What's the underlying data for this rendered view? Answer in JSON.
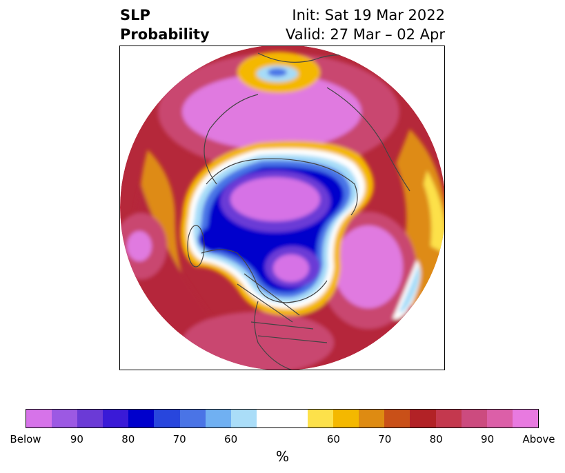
{
  "title": {
    "left_line1": "SLP",
    "left_line2": "Probability",
    "right_line1": "Init: Sat 19 Mar 2022",
    "right_line2": "Valid: 27 Mar – 02 Apr"
  },
  "map": {
    "projection": "north-polar-stereographic",
    "colors": {
      "above_high": "#e07ae0",
      "above_mid": "#c9466f",
      "above_low": "#b5283a",
      "orange": "#de8b12",
      "yellow": "#f4b800",
      "light_yellow": "#fde14a",
      "below_high": "#d672e6",
      "below_mid": "#6b3ad6",
      "below_low": "#0000cc",
      "blue": "#4a74e6",
      "light_blue": "#a6dcf8",
      "coast": "#444444"
    }
  },
  "colorbar": {
    "colors": [
      "#d673e9",
      "#9c59e3",
      "#6b3ad6",
      "#3a1ad7",
      "#0000cc",
      "#2846dd",
      "#4a74e6",
      "#70b0f2",
      "#aaddf8",
      "#ffffff",
      "#ffffff",
      "#fde14a",
      "#f4b800",
      "#de8b12",
      "#c95018",
      "#b22226",
      "#c4384e",
      "#cc4b7f",
      "#dc5fa8",
      "#e87ae0"
    ],
    "tick_labels": [
      "Below",
      "90",
      "80",
      "70",
      "60",
      "",
      "60",
      "70",
      "80",
      "90",
      "Above"
    ],
    "unit_label": "%"
  }
}
